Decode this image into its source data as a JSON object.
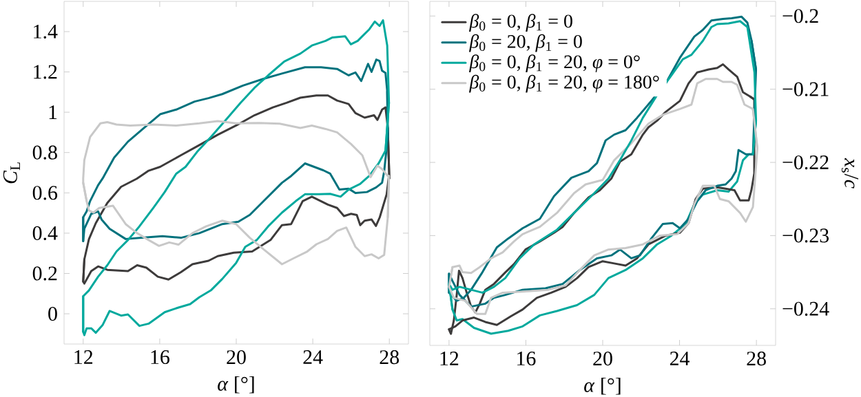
{
  "chart_data": [
    {
      "type": "line",
      "xlabel": "*α* [°]",
      "ylabel": "*C*$_{L}$",
      "xlim": [
        11,
        29
      ],
      "ylim": [
        -0.15,
        1.55
      ],
      "xticks": [
        12,
        16,
        20,
        24,
        28
      ],
      "yticks": [
        0,
        0.2,
        0.4,
        0.6,
        0.8,
        1,
        1.2,
        1.4
      ],
      "series": [
        {
          "color": "#3d3b3b",
          "x": [
            12.0,
            12.06,
            12.3,
            12.66,
            13.26,
            13.98,
            14.8,
            15.42,
            16.02,
            17.1,
            18.07,
            19.03,
            19.99,
            20.95,
            21.91,
            22.63,
            23.35,
            24.19,
            24.79,
            25.27,
            25.87,
            26.23,
            26.71,
            27.2,
            27.38,
            27.62,
            27.8,
            27.92,
            28.0
          ],
          "values": [
            0.16,
            0.27,
            0.37,
            0.45,
            0.55,
            0.63,
            0.67,
            0.71,
            0.729,
            0.786,
            0.837,
            0.888,
            0.934,
            0.985,
            1.024,
            1.047,
            1.072,
            1.083,
            1.083,
            1.058,
            1.041,
            0.996,
            0.973,
            0.985,
            0.962,
            1.013,
            1.024,
            0.922,
            0.672
          ]
        },
        {
          "color": "#3d3b3b",
          "x": [
            27.92,
            28.0,
            27.98,
            27.86,
            27.68,
            27.5,
            27.3,
            27.07,
            26.71,
            26.48,
            26.3,
            26.0,
            25.63,
            25.27,
            24.79,
            23.95,
            23.47,
            22.87,
            22.39,
            21.79,
            20.83,
            19.87,
            19.03,
            18.55,
            17.71,
            17.11,
            16.46,
            15.9,
            15.3,
            14.82,
            14.34,
            13.26,
            12.78,
            12.42,
            12.06,
            12.0,
            12.06
          ],
          "values": [
            0.922,
            0.672,
            0.684,
            0.593,
            0.536,
            0.479,
            0.436,
            0.468,
            0.462,
            0.44,
            0.49,
            0.496,
            0.485,
            0.525,
            0.542,
            0.581,
            0.559,
            0.445,
            0.44,
            0.366,
            0.309,
            0.303,
            0.286,
            0.263,
            0.246,
            0.207,
            0.17,
            0.184,
            0.229,
            0.241,
            0.212,
            0.218,
            0.235,
            0.212,
            0.15,
            0.16,
            0.27
          ]
        },
        {
          "color": "#00727d",
          "x": [
            12.0,
            12.0,
            12.18,
            12.36,
            12.78,
            13.02,
            13.62,
            14.34,
            15.18,
            16.02,
            16.86,
            17.82,
            18.55,
            19.27,
            20.35,
            21.43,
            22.39,
            23.59,
            24.43,
            25.27,
            25.87,
            26.23,
            26.53,
            26.89,
            27.07,
            27.32,
            27.49,
            27.62,
            27.8,
            27.89,
            27.92
          ],
          "values": [
            0.36,
            0.479,
            0.508,
            0.559,
            0.638,
            0.672,
            0.775,
            0.854,
            0.922,
            0.99,
            1.013,
            1.053,
            1.07,
            1.09,
            1.132,
            1.166,
            1.192,
            1.223,
            1.223,
            1.215,
            1.183,
            1.197,
            1.155,
            1.24,
            1.2,
            1.261,
            1.254,
            1.206,
            1.195,
            1.104,
            0.877
          ]
        },
        {
          "color": "#00727d",
          "x": [
            27.89,
            27.92,
            27.73,
            27.62,
            27.31,
            26.83,
            26.23,
            25.87,
            25.39,
            24.91,
            24.55,
            23.59,
            22.87,
            22.39,
            21.43,
            20.71,
            20.11,
            19.27,
            18.07,
            17.11,
            16.14,
            15.06,
            14.22,
            13.38,
            12.96,
            12.78,
            12.42,
            12.06,
            12.0,
            12.0
          ],
          "values": [
            1.104,
            0.877,
            0.706,
            0.65,
            0.627,
            0.604,
            0.599,
            0.621,
            0.616,
            0.695,
            0.712,
            0.746,
            0.684,
            0.65,
            0.559,
            0.491,
            0.457,
            0.445,
            0.4,
            0.377,
            0.385,
            0.377,
            0.371,
            0.422,
            0.468,
            0.508,
            0.496,
            0.422,
            0.36,
            0.479
          ]
        },
        {
          "color": "#00a99d",
          "x": [
            12.0,
            12.0,
            12.06,
            12.18,
            12.42,
            12.66,
            13.02,
            13.38,
            13.98,
            14.34,
            14.94,
            15.42,
            16.26,
            16.98,
            17.59,
            18.07,
            18.67,
            19.27,
            19.99,
            20.47,
            21.07,
            21.67,
            22.39,
            23.11,
            23.59,
            24.31,
            24.91,
            25.45,
            25.87,
            26.47,
            26.95,
            27.44,
            27.8,
            27.98
          ],
          "values": [
            0.087,
            -0.089,
            -0.106,
            -0.072,
            -0.072,
            -0.094,
            -0.055,
            0.014,
            -0.009,
            -0.003,
            -0.06,
            -0.049,
            0.008,
            0.031,
            0.048,
            0.082,
            0.116,
            0.173,
            0.252,
            0.332,
            0.366,
            0.434,
            0.502,
            0.559,
            0.593,
            0.593,
            0.595,
            0.581,
            0.616,
            0.644,
            0.684,
            0.746,
            0.809,
            1.047
          ]
        },
        {
          "color": "#00a99d",
          "x": [
            27.8,
            27.98,
            27.89,
            27.67,
            27.49,
            27.24,
            26.95,
            26.59,
            26.35,
            25.99,
            25.69,
            25.03,
            24.67,
            23.95,
            23.35,
            22.51,
            21.67,
            20.95,
            20.23,
            19.51,
            18.67,
            17.95,
            17.35,
            16.86,
            16.26,
            15.66,
            14.94,
            14.34,
            13.74,
            13.26,
            12.78,
            12.3,
            12.0,
            12.0
          ],
          "values": [
            0.809,
            1.047,
            1.331,
            1.456,
            1.428,
            1.45,
            1.411,
            1.377,
            1.354,
            1.337,
            1.377,
            1.371,
            1.354,
            1.331,
            1.291,
            1.252,
            1.183,
            1.121,
            1.047,
            0.968,
            0.877,
            0.803,
            0.729,
            0.695,
            0.604,
            0.525,
            0.434,
            0.366,
            0.309,
            0.241,
            0.184,
            0.116,
            0.087,
            -0.089
          ]
        },
        {
          "color": "#c8c8c8",
          "x": [
            12.0,
            12.18,
            12.3,
            12.54,
            12.84,
            13.56,
            14.22,
            14.82,
            15.42,
            15.96,
            16.5,
            16.98,
            17.71,
            18.43,
            19.27,
            19.99,
            20.71,
            21.43,
            22.39,
            22.99,
            23.71,
            24.19,
            24.79,
            25.27,
            25.75,
            26.23,
            26.71,
            27.07,
            27.44,
            27.73,
            27.92,
            27.98
          ],
          "values": [
            0.65,
            0.559,
            0.513,
            0.502,
            0.525,
            0.536,
            0.445,
            0.4,
            0.366,
            0.337,
            0.354,
            0.343,
            0.4,
            0.434,
            0.462,
            0.445,
            0.377,
            0.32,
            0.246,
            0.275,
            0.309,
            0.345,
            0.371,
            0.411,
            0.428,
            0.332,
            0.286,
            0.295,
            0.275,
            0.292,
            0.479,
            0.684
          ]
        },
        {
          "color": "#c8c8c8",
          "x": [
            27.92,
            27.98,
            27.92,
            27.62,
            27.38,
            27.02,
            26.59,
            25.99,
            25.27,
            24.67,
            23.95,
            23.35,
            22.27,
            21.19,
            19.99,
            19.03,
            18.07,
            16.86,
            15.66,
            14.46,
            13.74,
            13.26,
            12.9,
            12.36,
            12.06,
            12.0,
            12.0,
            12.18
          ],
          "values": [
            0.479,
            0.684,
            0.684,
            0.718,
            0.735,
            0.678,
            0.786,
            0.843,
            0.9,
            0.917,
            0.934,
            0.922,
            0.943,
            0.947,
            0.945,
            0.956,
            0.945,
            0.934,
            0.939,
            0.934,
            0.939,
            0.951,
            0.945,
            0.877,
            0.763,
            0.672,
            0.65,
            0.559
          ]
        }
      ]
    },
    {
      "type": "line",
      "xlabel": "*α* [°]",
      "y2label": "*x*$_{s}$/*c*",
      "xlim": [
        11,
        29
      ],
      "y2lim": [
        -0.245,
        -0.198
      ],
      "xticks": [
        12,
        16,
        20,
        24,
        28
      ],
      "y2ticks": [
        {
          "value": -0.24,
          "label": "−0.24"
        },
        {
          "value": -0.23,
          "label": "−0.23"
        },
        {
          "value": -0.22,
          "label": "−0.22"
        },
        {
          "value": -0.21,
          "label": "−0.21"
        },
        {
          "value": -0.2,
          "label": "−0.2"
        }
      ],
      "legend": "top left",
      "series": [
        {
          "name": "*β*$_{0}$ = 0, *β*$_{1}$ = 0",
          "color": "#3d3b3b",
          "axis": "y2",
          "x": [
            12.0,
            12.1,
            12.25,
            12.4,
            12.52,
            12.7,
            12.92,
            13.15,
            13.37,
            13.6,
            13.89,
            14.34,
            14.64,
            14.94,
            15.38,
            15.98,
            16.73,
            17.47,
            17.92,
            18.51,
            19.26,
            19.85,
            20.45,
            20.9,
            21.49,
            22.09,
            22.38,
            22.83,
            23.28,
            24.02,
            24.47,
            24.92,
            25.51,
            25.96,
            26.26,
            26.55,
            27.0,
            27.3,
            27.67,
            27.89
          ],
          "values": [
            -0.2428,
            -0.2434,
            -0.2416,
            -0.2381,
            -0.2348,
            -0.2358,
            -0.2378,
            -0.2397,
            -0.2405,
            -0.2393,
            -0.2374,
            -0.2366,
            -0.2358,
            -0.235,
            -0.2339,
            -0.2319,
            -0.2308,
            -0.2296,
            -0.2288,
            -0.2269,
            -0.2248,
            -0.2238,
            -0.2222,
            -0.2199,
            -0.2189,
            -0.2162,
            -0.2152,
            -0.2143,
            -0.2131,
            -0.2116,
            -0.2092,
            -0.2077,
            -0.2073,
            -0.2071,
            -0.2066,
            -0.2073,
            -0.2083,
            -0.2104,
            -0.211,
            -0.2114
          ]
        },
        {
          "name": "*β*$_{0}$ = 20, *β*$_{1}$ = 0",
          "color": "#00727d",
          "axis": "y2",
          "x": [
            12.0,
            12.0,
            12.4,
            12.77,
            13.15,
            13.74,
            14.49,
            15.08,
            15.83,
            16.73,
            17.47,
            18.37,
            19.26,
            19.7,
            20.15,
            20.6,
            21.19,
            21.79,
            22.53,
            23.28,
            24.02,
            24.77,
            25.21,
            25.66,
            26.26,
            26.71,
            27.23,
            27.53,
            27.75,
            27.98
          ],
          "values": [
            -0.2352,
            -0.2378,
            -0.2389,
            -0.2385,
            -0.2374,
            -0.235,
            -0.2316,
            -0.2304,
            -0.229,
            -0.2277,
            -0.2246,
            -0.2221,
            -0.2212,
            -0.2201,
            -0.217,
            -0.2162,
            -0.2156,
            -0.2139,
            -0.2116,
            -0.2092,
            -0.2057,
            -0.2028,
            -0.2019,
            -0.2006,
            -0.2004,
            -0.2003,
            -0.2001,
            -0.2009,
            -0.2034,
            -0.2073
          ]
        },
        {
          "name": "*β*$_{0}$ = 0, *β*$_{1}$ = 20, *φ* = 0°",
          "color": "#00a99d",
          "axis": "y2",
          "x": [
            12.0,
            12.18,
            12.4,
            12.7,
            13.3,
            14.19,
            15.08,
            15.83,
            16.73,
            17.62,
            18.66,
            19.56,
            20.3,
            21.19,
            22.09,
            22.83,
            23.58,
            24.32,
            24.77,
            25.21,
            25.96,
            26.55,
            27.0,
            27.3,
            27.6,
            27.82,
            27.98
          ],
          "values": [
            -0.2366,
            -0.2401,
            -0.2416,
            -0.2414,
            -0.2426,
            -0.2434,
            -0.243,
            -0.2424,
            -0.2409,
            -0.2403,
            -0.2395,
            -0.2381,
            -0.2358,
            -0.2347,
            -0.2331,
            -0.2312,
            -0.23,
            -0.2284,
            -0.2257,
            -0.2244,
            -0.2238,
            -0.224,
            -0.2226,
            -0.2197,
            -0.2189,
            -0.2189,
            -0.2143
          ]
        },
        {
          "name": "*β*$_{0}$ = 0, *β*$_{1}$ = 20, *φ* = 180°",
          "color": "#c8c8c8",
          "axis": "y2",
          "x": [
            12.0,
            12.18,
            12.55,
            12.7,
            13.15,
            13.6,
            14.19,
            14.79,
            15.38,
            15.83,
            16.73,
            17.62,
            18.51,
            19.11,
            20.0,
            20.6,
            21.49,
            22.38,
            23.13,
            24.02,
            24.62,
            24.92,
            25.36,
            25.96,
            26.26,
            26.71,
            27.0,
            27.38,
            27.82,
            28.05
          ],
          "values": [
            -0.237,
            -0.2343,
            -0.2341,
            -0.235,
            -0.2351,
            -0.2343,
            -0.2331,
            -0.2323,
            -0.2308,
            -0.2298,
            -0.2288,
            -0.2269,
            -0.2242,
            -0.223,
            -0.2224,
            -0.2197,
            -0.2174,
            -0.2147,
            -0.2135,
            -0.2127,
            -0.2121,
            -0.2092,
            -0.2086,
            -0.2086,
            -0.209,
            -0.209,
            -0.2094,
            -0.2121,
            -0.2127,
            -0.2181
          ]
        },
        {
          "color": "#3d3b3b",
          "axis": "y2",
          "x": [
            27.67,
            27.89,
            27.89,
            27.74,
            27.6,
            27.15,
            26.86,
            26.4,
            25.96,
            25.21,
            24.84,
            24.47,
            24.02,
            23.28,
            22.38,
            21.79,
            21.19,
            20.6,
            20.0,
            19.26,
            18.67,
            18.07,
            17.32,
            16.57,
            15.83,
            15.23,
            14.49,
            13.89,
            13.3,
            12.7,
            12.33,
            12.0,
            12.1
          ],
          "values": [
            -0.211,
            -0.2114,
            -0.2215,
            -0.2238,
            -0.2252,
            -0.2252,
            -0.2238,
            -0.2236,
            -0.2234,
            -0.2236,
            -0.225,
            -0.2283,
            -0.2296,
            -0.23,
            -0.2312,
            -0.2331,
            -0.2341,
            -0.2338,
            -0.2335,
            -0.2343,
            -0.2358,
            -0.237,
            -0.2378,
            -0.2385,
            -0.2401,
            -0.241,
            -0.2422,
            -0.2418,
            -0.2412,
            -0.2416,
            -0.2424,
            -0.2428,
            -0.2434
          ]
        },
        {
          "color": "#00727d",
          "axis": "y2",
          "x": [
            27.75,
            27.98,
            27.82,
            27.45,
            27.07,
            26.93,
            26.71,
            26.4,
            25.96,
            25.36,
            24.92,
            24.47,
            24.02,
            23.64,
            23.13,
            22.53,
            21.94,
            21.49,
            20.9,
            20.45,
            19.7,
            18.81,
            17.92,
            17.02,
            15.83,
            14.93,
            14.34,
            13.89,
            13.15,
            12.55,
            12.18,
            12.0,
            12.0
          ],
          "values": [
            -0.2034,
            -0.2073,
            -0.2189,
            -0.2189,
            -0.2183,
            -0.2212,
            -0.2222,
            -0.223,
            -0.2232,
            -0.2238,
            -0.2253,
            -0.2277,
            -0.229,
            -0.2283,
            -0.2284,
            -0.2304,
            -0.2327,
            -0.2331,
            -0.2319,
            -0.2327,
            -0.2331,
            -0.2347,
            -0.2366,
            -0.2372,
            -0.2374,
            -0.2381,
            -0.2385,
            -0.2393,
            -0.2397,
            -0.2381,
            -0.2362,
            -0.2352,
            -0.2378
          ]
        },
        {
          "color": "#00a99d",
          "axis": "y2",
          "x": [
            27.82,
            27.98,
            27.9,
            27.53,
            27.15,
            26.55,
            25.96,
            25.66,
            25.21,
            24.62,
            24.17,
            23.58,
            22.83,
            22.09,
            21.49,
            20.9,
            20.3,
            19.56,
            18.51,
            17.62,
            16.43,
            15.68,
            14.93,
            14.34,
            13.74,
            13.15,
            12.55,
            12.18,
            12.0,
            12.18
          ],
          "values": [
            -0.2189,
            -0.2143,
            -0.2077,
            -0.2015,
            -0.2007,
            -0.201,
            -0.2011,
            -0.2015,
            -0.2034,
            -0.2053,
            -0.2059,
            -0.2081,
            -0.2108,
            -0.2139,
            -0.217,
            -0.2197,
            -0.2222,
            -0.2242,
            -0.2269,
            -0.2292,
            -0.2312,
            -0.2331,
            -0.2358,
            -0.237,
            -0.2378,
            -0.2374,
            -0.237,
            -0.2374,
            -0.2366,
            -0.2401
          ]
        },
        {
          "color": "#c8c8c8",
          "axis": "y2",
          "x": [
            27.82,
            28.05,
            27.82,
            27.45,
            27.15,
            26.55,
            26.1,
            25.81,
            25.21,
            24.77,
            24.47,
            23.88,
            22.98,
            22.09,
            21.19,
            20.3,
            19.56,
            18.81,
            18.07,
            17.17,
            16.13,
            14.79,
            14.19,
            13.89,
            13.45,
            12.85,
            12.25,
            12.0,
            12.18
          ],
          "values": [
            -0.2127,
            -0.2181,
            -0.2261,
            -0.2281,
            -0.2269,
            -0.2253,
            -0.225,
            -0.2232,
            -0.2232,
            -0.2257,
            -0.2283,
            -0.2298,
            -0.23,
            -0.2312,
            -0.2317,
            -0.2319,
            -0.2327,
            -0.2347,
            -0.2368,
            -0.2374,
            -0.2376,
            -0.2378,
            -0.2385,
            -0.2407,
            -0.2407,
            -0.2389,
            -0.2385,
            -0.237,
            -0.2343
          ]
        }
      ]
    }
  ]
}
